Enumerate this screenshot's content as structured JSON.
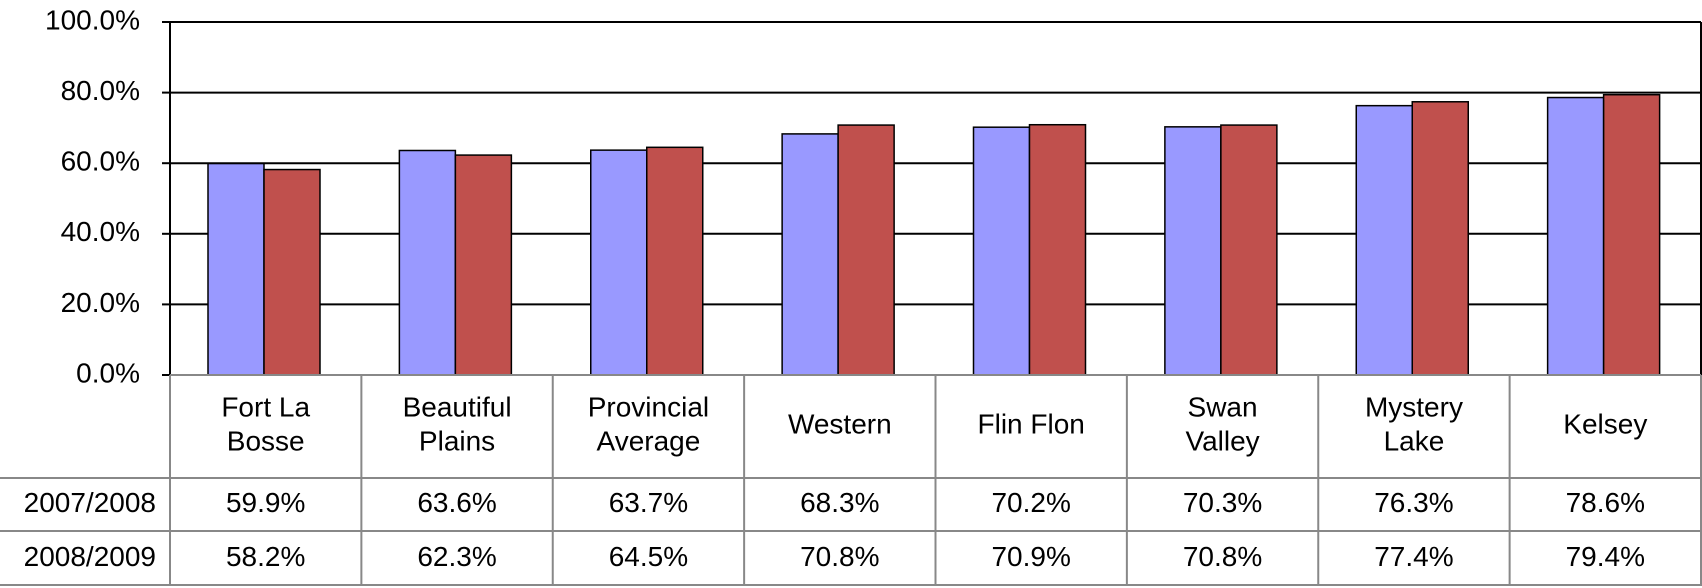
{
  "chart_data": {
    "type": "bar",
    "categories": [
      "Fort La\nBosse",
      "Beautiful\nPlains",
      "Provincial\nAverage",
      "Western",
      "Flin Flon",
      "Swan\nValley",
      "Mystery\nLake",
      "Kelsey"
    ],
    "series": [
      {
        "name": "2007/2008",
        "color": "#9999ff",
        "values": [
          59.9,
          63.6,
          63.7,
          68.3,
          70.2,
          70.3,
          76.3,
          78.6
        ],
        "value_labels": [
          "59.9%",
          "63.6%",
          "63.7%",
          "68.3%",
          "70.2%",
          "70.3%",
          "76.3%",
          "78.6%"
        ]
      },
      {
        "name": "2008/2009",
        "color": "#c0504d",
        "values": [
          58.2,
          62.3,
          64.5,
          70.8,
          70.9,
          70.8,
          77.4,
          79.4
        ],
        "value_labels": [
          "58.2%",
          "62.3%",
          "64.5%",
          "70.8%",
          "70.9%",
          "70.8%",
          "77.4%",
          "79.4%"
        ]
      }
    ],
    "ylim": [
      0,
      100
    ],
    "yticks": [
      {
        "value": 0,
        "label": "0.0%"
      },
      {
        "value": 20,
        "label": "20.0%"
      },
      {
        "value": 40,
        "label": "40.0%"
      },
      {
        "value": 60,
        "label": "60.0%"
      },
      {
        "value": 80,
        "label": "80.0%"
      },
      {
        "value": 100,
        "label": "100.0%"
      }
    ],
    "grid": true
  }
}
